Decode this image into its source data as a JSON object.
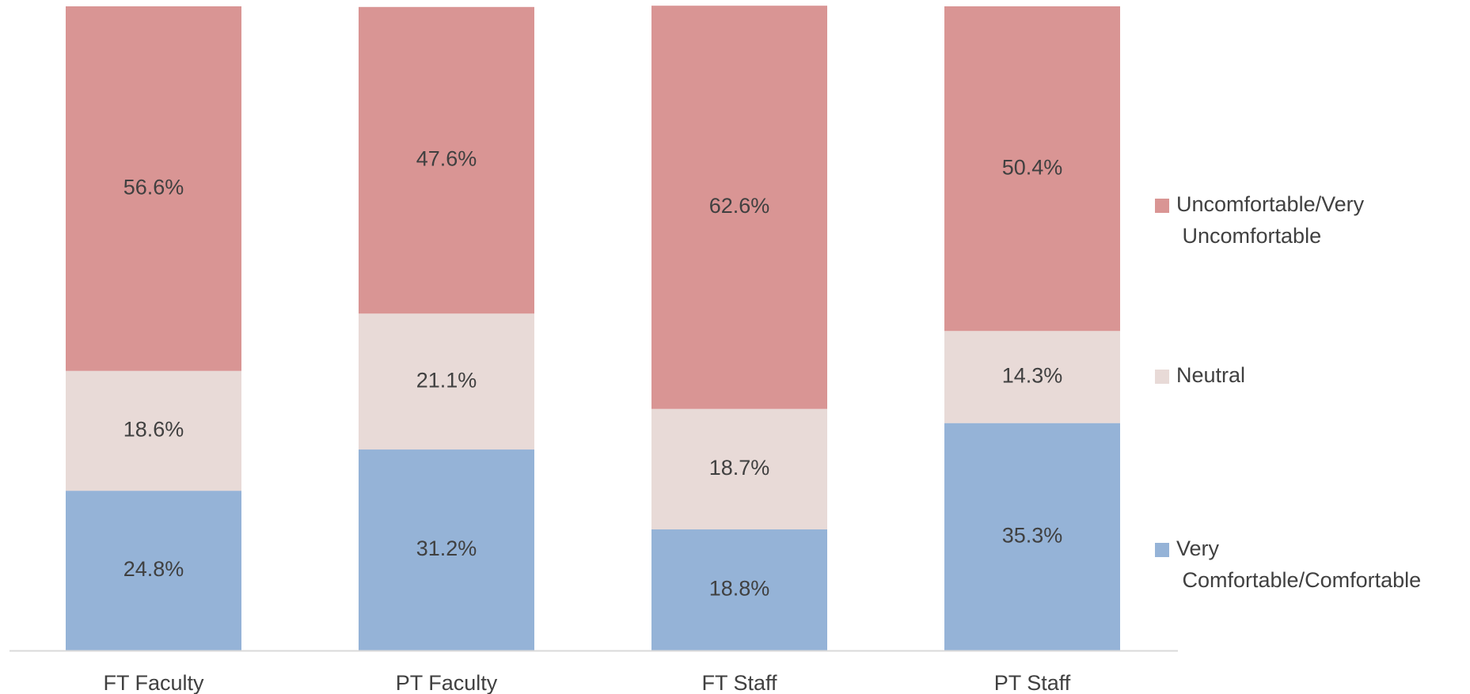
{
  "chart_data": {
    "type": "stacked_bar",
    "categories": [
      "FT Faculty",
      "PT Faculty",
      "FT Staff",
      "PT Staff"
    ],
    "ylim": [
      0,
      100
    ],
    "series": [
      {
        "name": "Very Comfortable/Comfortable",
        "color": "#95b3d7",
        "values": [
          24.8,
          31.2,
          18.8,
          35.3
        ],
        "value_labels": [
          "24.8%",
          "31.2%",
          "18.8%",
          "35.3%"
        ]
      },
      {
        "name": "Neutral",
        "color": "#e8dad7",
        "values": [
          18.6,
          21.1,
          18.7,
          14.3
        ],
        "value_labels": [
          "18.6%",
          "21.1%",
          "18.7%",
          "14.3%"
        ]
      },
      {
        "name": "Uncomfortable/Very Uncomfortable",
        "color": "#d99594",
        "values": [
          56.6,
          47.6,
          62.6,
          50.4
        ],
        "value_labels": [
          "56.6%",
          "47.6%",
          "62.6%",
          "50.4%"
        ]
      }
    ],
    "legend": "right"
  }
}
